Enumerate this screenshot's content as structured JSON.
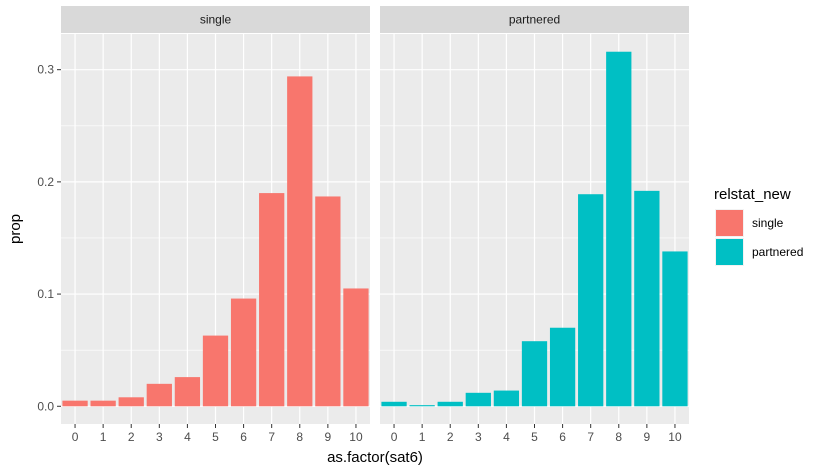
{
  "chart_data": {
    "type": "bar",
    "facet_variable": "relstat_new",
    "panels": [
      {
        "label": "single",
        "color": "#F8766D"
      },
      {
        "label": "partnered",
        "color": "#00BFC4"
      }
    ],
    "categories": [
      "0",
      "1",
      "2",
      "3",
      "4",
      "5",
      "6",
      "7",
      "8",
      "9",
      "10"
    ],
    "series": [
      {
        "name": "single",
        "values": [
          0.005,
          0.005,
          0.008,
          0.02,
          0.026,
          0.063,
          0.096,
          0.19,
          0.294,
          0.187,
          0.105
        ]
      },
      {
        "name": "partnered",
        "values": [
          0.004,
          0.001,
          0.004,
          0.012,
          0.014,
          0.058,
          0.07,
          0.189,
          0.316,
          0.192,
          0.138
        ]
      }
    ],
    "xlabel": "as.factor(sat6)",
    "ylabel": "prop",
    "ylim": [
      -0.0158,
      0.3318
    ],
    "yticks": [
      0.0,
      0.1,
      0.2,
      0.3
    ],
    "ytick_labels": [
      "0.0",
      "0.1",
      "0.2",
      "0.3"
    ],
    "grid": true,
    "legend": {
      "title": "relstat_new",
      "position": "right",
      "entries": [
        {
          "label": "single",
          "color": "#F8766D"
        },
        {
          "label": "partnered",
          "color": "#00BFC4"
        }
      ]
    }
  }
}
